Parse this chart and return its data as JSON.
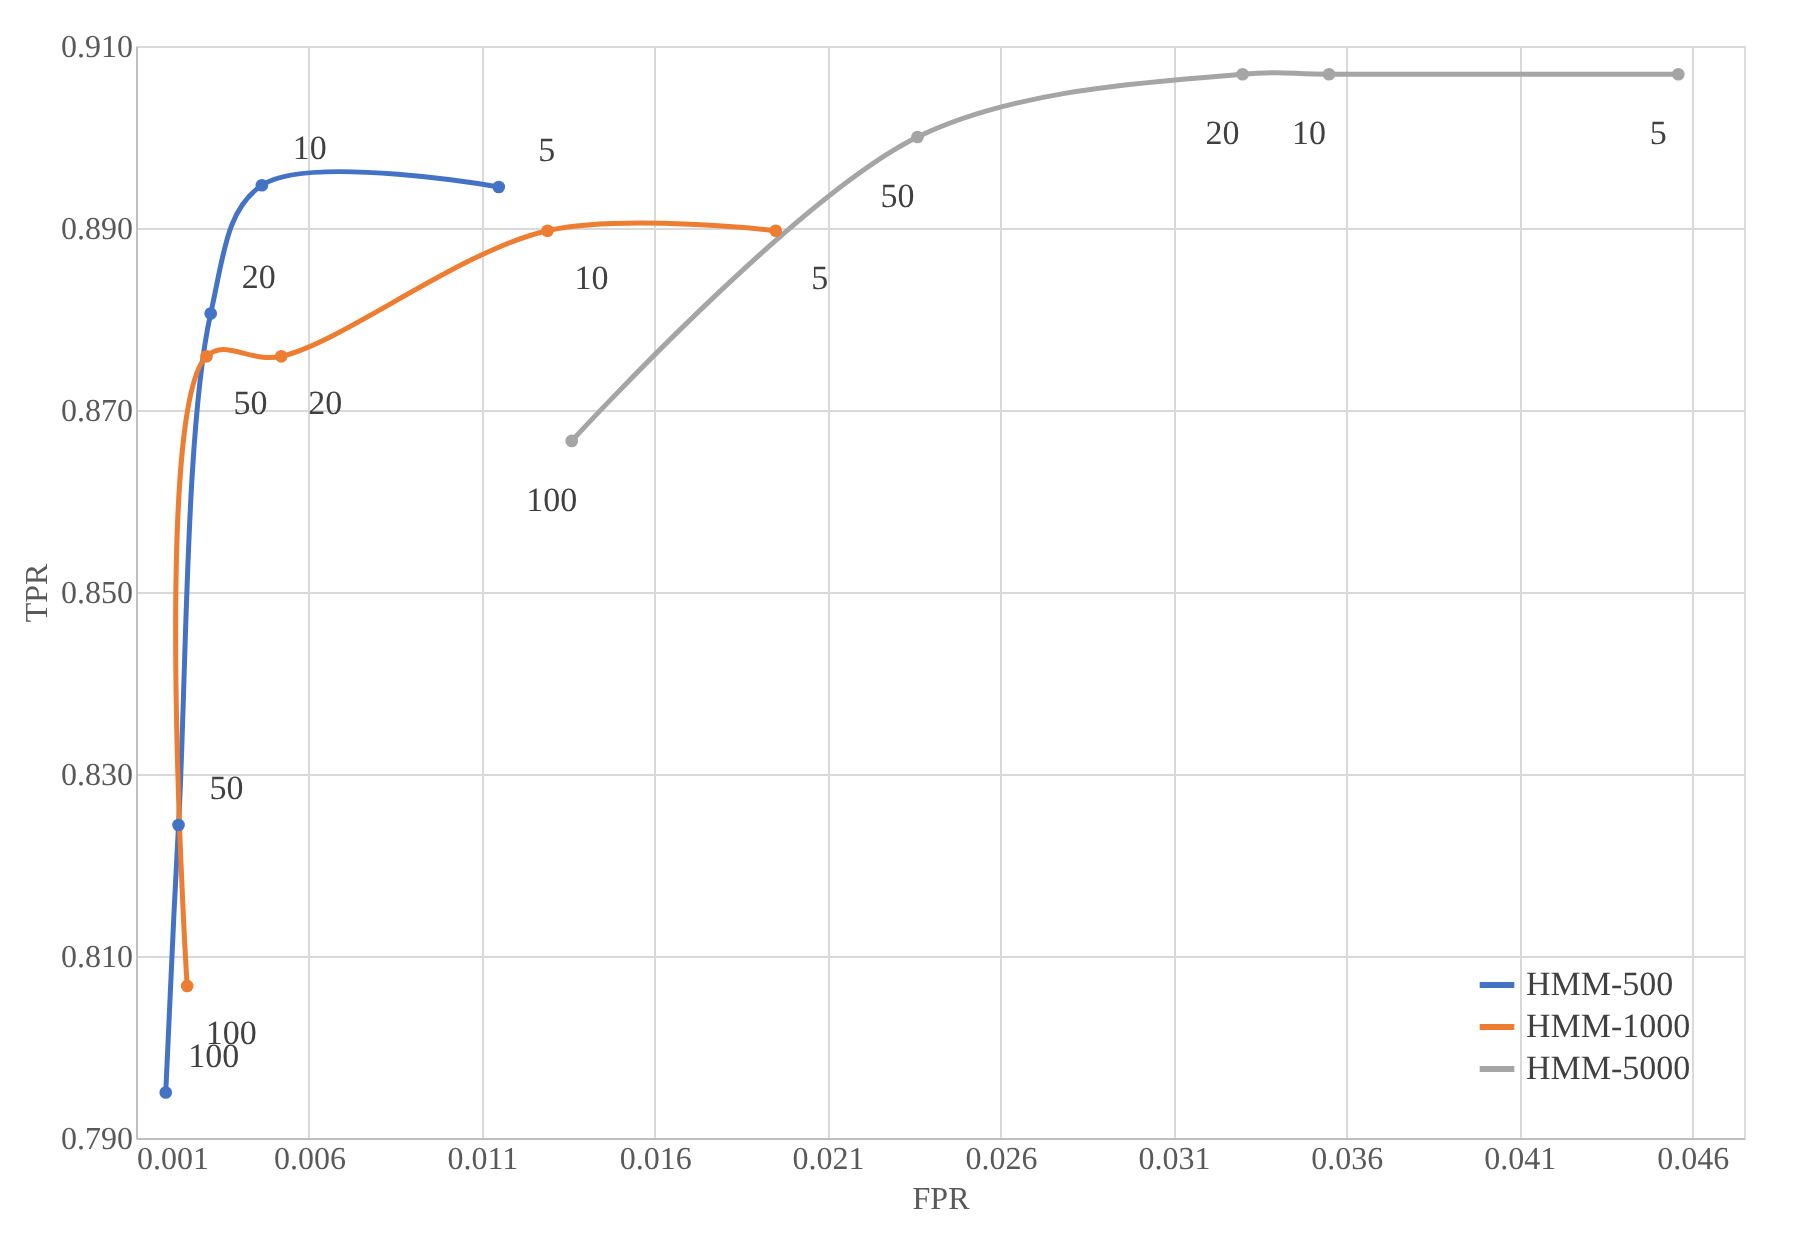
{
  "chart_data": {
    "type": "line",
    "xlabel": "FPR",
    "ylabel": "TPR",
    "xlim": [
      0.001,
      0.0475
    ],
    "xticks": [
      0.001,
      0.006,
      0.011,
      0.016,
      0.021,
      0.026,
      0.031,
      0.036,
      0.041,
      0.046
    ],
    "ylim": [
      0.79,
      0.91
    ],
    "yticks": [
      {
        "value": 0.79,
        "label": "0.790"
      },
      {
        "value": 0.81,
        "label": "0.810"
      },
      {
        "value": 0.83,
        "label": "0.830"
      },
      {
        "value": 0.85,
        "label": "0.850"
      },
      {
        "value": 0.87,
        "label": "0.870"
      },
      {
        "value": 0.89,
        "label": "0.890"
      },
      {
        "value": 0.91,
        "label": "0.910"
      }
    ],
    "grid": true,
    "legend": "bottom right",
    "marker": "circle",
    "line_style": "solid",
    "series": [
      {
        "name": "HMM-500",
        "color": "#4472c4",
        "x": [
          0.00186,
          0.00223,
          0.00316,
          0.00464,
          0.01149
        ],
        "values": [
          0.795,
          0.8244,
          0.8806,
          0.8947,
          0.8945
        ]
      },
      {
        "name": "HMM-1000",
        "color": "#ed7d31",
        "x": [
          0.00248,
          0.00304,
          0.0052,
          0.0129,
          0.0195
        ],
        "values": [
          0.8067,
          0.8759,
          0.8759,
          0.8897,
          0.8897
        ]
      },
      {
        "name": "HMM-5000",
        "color": "#a5a5a5",
        "x": [
          0.0136,
          0.0236,
          0.033,
          0.0355,
          0.0456
        ],
        "values": [
          0.8666,
          0.9,
          0.9069,
          0.9069,
          0.9069
        ]
      }
    ],
    "annotations": [
      {
        "text": "100",
        "x": 0.00186,
        "y": 0.795
      },
      {
        "text": "50",
        "x": 0.00223,
        "y": 0.8244
      },
      {
        "text": "20",
        "x": 0.00316,
        "y": 0.8806
      },
      {
        "text": "10",
        "x": 0.00464,
        "y": 0.8947
      },
      {
        "text": "5",
        "x": 0.01149,
        "y": 0.8945
      },
      {
        "text": "100",
        "x": 0.00248,
        "y": 0.8067
      },
      {
        "text": "50",
        "x": 0.00304,
        "y": 0.8759
      },
      {
        "text": "20",
        "x": 0.0052,
        "y": 0.8759
      },
      {
        "text": "10",
        "x": 0.0129,
        "y": 0.8897
      },
      {
        "text": "5",
        "x": 0.0195,
        "y": 0.8897
      },
      {
        "text": "100",
        "x": 0.0136,
        "y": 0.8666
      },
      {
        "text": "50",
        "x": 0.0236,
        "y": 0.9
      },
      {
        "text": "20",
        "x": 0.033,
        "y": 0.9069
      },
      {
        "text": "10",
        "x": 0.0355,
        "y": 0.9069
      },
      {
        "text": "5",
        "x": 0.0456,
        "y": 0.9069
      }
    ]
  }
}
